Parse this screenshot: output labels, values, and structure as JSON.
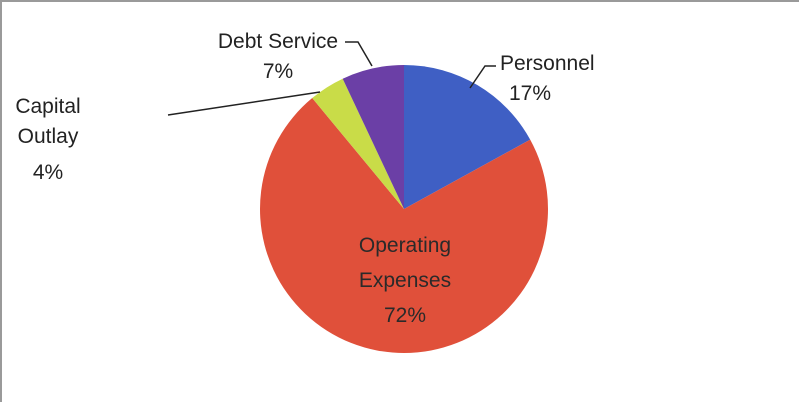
{
  "chart_data": {
    "type": "pie",
    "title": "",
    "slices": [
      {
        "label": "Personnel",
        "value": 17,
        "value_label": "17%",
        "color": "#3f5fc4"
      },
      {
        "label": "Operating Expenses",
        "label_lines": [
          "Operating",
          "Expenses"
        ],
        "value": 72,
        "value_label": "72%",
        "color": "#e0503a"
      },
      {
        "label": "Capital Outlay",
        "label_lines": [
          "Capital",
          "Outlay"
        ],
        "value": 4,
        "value_label": "4%",
        "color": "#c9dc48"
      },
      {
        "label": "Debt Service",
        "value": 7,
        "value_label": "7%",
        "color": "#6b3fa6"
      }
    ],
    "start_angle_deg": 0,
    "direction": "clockwise",
    "legend": "none",
    "label_text_color": "#222222"
  }
}
